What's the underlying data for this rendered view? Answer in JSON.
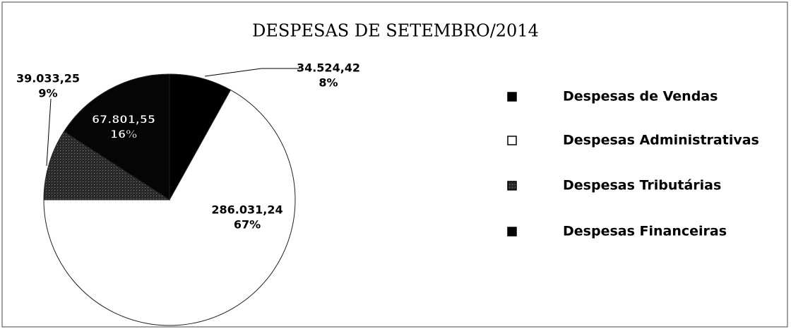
{
  "chart_data": {
    "type": "pie",
    "title": "DESPESAS DE SETEMBRO/2014",
    "categories": [
      "Despesas de Vendas",
      "Despesas Administrativas",
      "Despesas Tributárias",
      "Despesas Financeiras"
    ],
    "values": [
      34524.42,
      286031.24,
      39033.25,
      67801.55
    ],
    "value_labels": [
      "34.524,42",
      "286.031,24",
      "39.033,25",
      "67.801,55"
    ],
    "percent_labels": [
      "8%",
      "67%",
      "9%",
      "16%"
    ],
    "colors": [
      "#000000",
      "#ffffff",
      "#2a2a2a",
      "#050505"
    ],
    "legend": "right"
  }
}
